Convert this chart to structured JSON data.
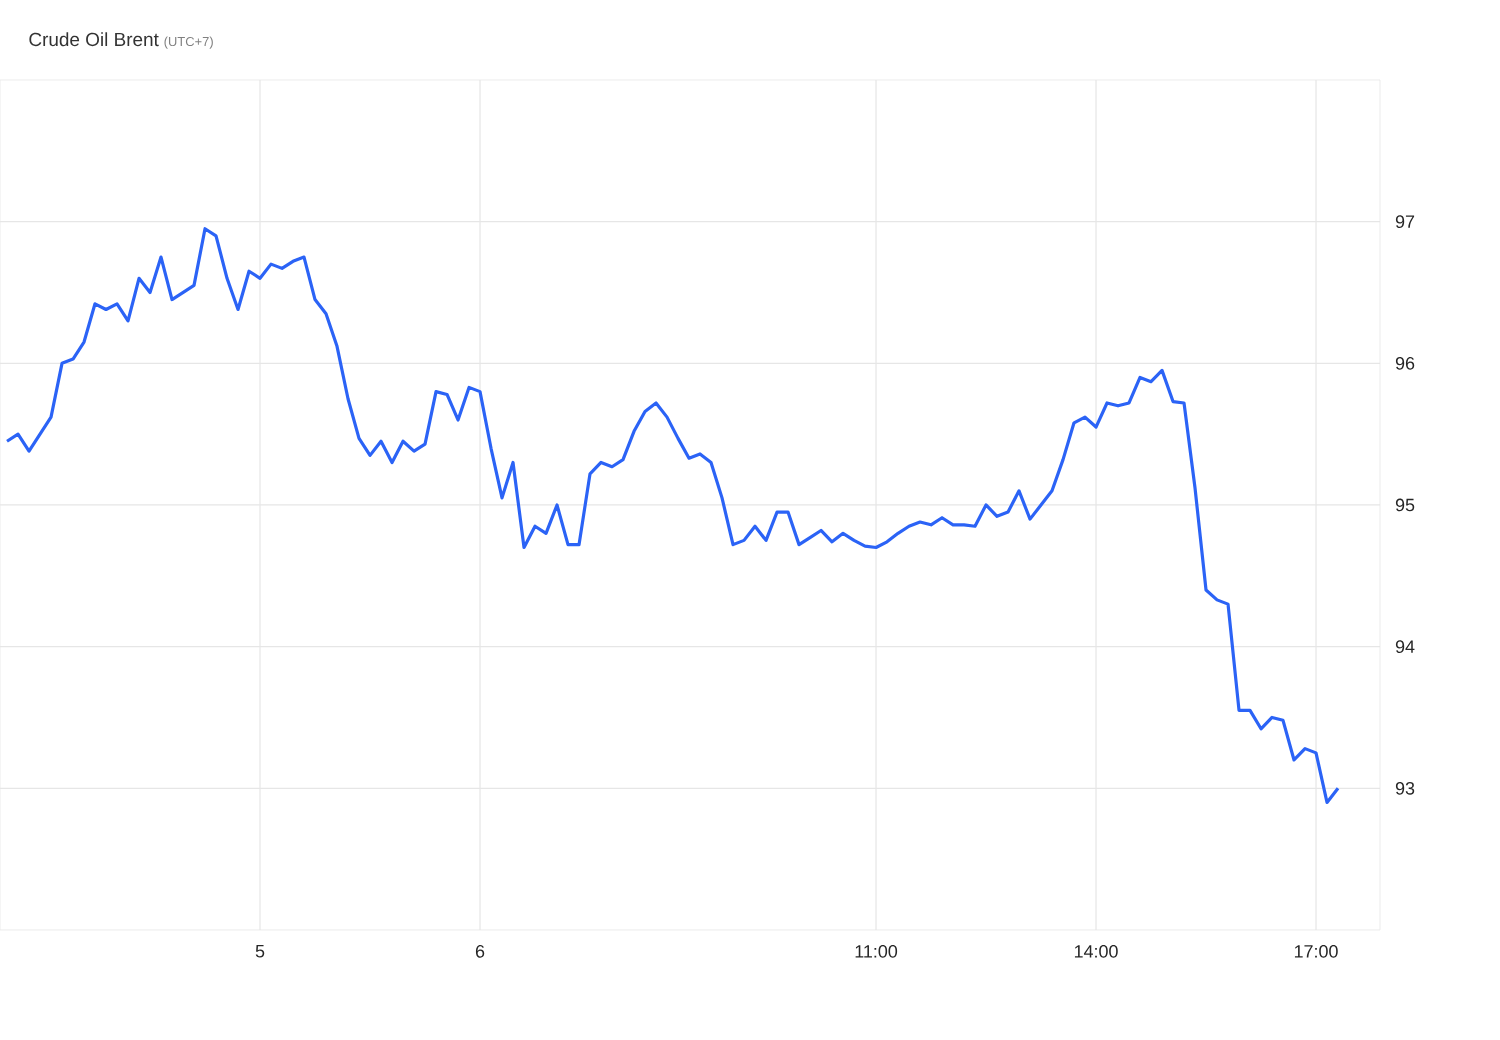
{
  "chart_data": {
    "type": "line",
    "title": "Crude Oil Brent",
    "subtitle": "(UTC+7)",
    "categories": [
      null,
      null,
      null,
      null,
      null,
      null,
      null,
      null,
      null,
      null,
      null,
      null,
      null,
      null,
      null,
      null,
      null,
      null,
      null,
      null,
      null,
      null,
      null,
      "5",
      null,
      null,
      null,
      null,
      null,
      null,
      null,
      null,
      null,
      null,
      null,
      null,
      null,
      null,
      null,
      null,
      null,
      null,
      null,
      "6",
      null,
      null,
      null,
      null,
      null,
      null,
      null,
      null,
      null,
      null,
      null,
      null,
      null,
      null,
      null,
      null,
      null,
      null,
      null,
      null,
      null,
      null,
      null,
      null,
      null,
      null,
      null,
      null,
      null,
      null,
      null,
      null,
      null,
      null,
      null,
      "11:00",
      null,
      null,
      null,
      null,
      null,
      null,
      null,
      null,
      null,
      null,
      null,
      null,
      null,
      null,
      null,
      null,
      null,
      null,
      null,
      "14:00",
      null,
      null,
      null,
      null,
      null,
      null,
      null,
      null,
      null,
      null,
      null,
      null,
      null,
      null,
      null,
      null,
      null,
      null,
      null,
      "17:00",
      null,
      null
    ],
    "series": [
      {
        "color": "#2b63f6",
        "values": [
          95.45,
          95.5,
          95.38,
          95.5,
          95.62,
          96.0,
          96.03,
          96.15,
          96.42,
          96.38,
          96.42,
          96.3,
          96.6,
          96.5,
          96.75,
          96.45,
          96.5,
          96.55,
          96.95,
          96.9,
          96.6,
          96.38,
          96.65,
          96.6,
          96.7,
          96.67,
          96.72,
          96.75,
          96.45,
          96.35,
          96.12,
          95.75,
          95.47,
          95.35,
          95.45,
          95.3,
          95.45,
          95.38,
          95.43,
          95.8,
          95.78,
          95.6,
          95.83,
          95.8,
          95.4,
          95.05,
          95.3,
          94.7,
          94.85,
          94.8,
          95.0,
          94.72,
          94.72,
          95.22,
          95.3,
          95.27,
          95.32,
          95.52,
          95.66,
          95.72,
          95.62,
          95.47,
          95.33,
          95.36,
          95.3,
          95.05,
          94.72,
          94.75,
          94.85,
          94.75,
          94.95,
          94.95,
          94.72,
          94.77,
          94.82,
          94.74,
          94.8,
          94.75,
          94.71,
          94.7,
          94.74,
          94.8,
          94.85,
          94.88,
          94.86,
          94.91,
          94.86,
          94.86,
          94.85,
          95.0,
          94.92,
          94.95,
          95.1,
          94.9,
          95.0,
          95.1,
          95.32,
          95.58,
          95.62,
          95.55,
          95.72,
          95.7,
          95.72,
          95.9,
          95.87,
          95.95,
          95.73,
          95.72,
          95.12,
          94.4,
          94.33,
          94.3,
          93.55,
          93.55,
          93.42,
          93.5,
          93.48,
          93.2,
          93.28,
          93.25,
          92.9,
          93.0
        ]
      }
    ],
    "ylim": [
      92,
      98
    ],
    "yticks": [
      93,
      94,
      95,
      96,
      97
    ],
    "grid": true,
    "marker": "none",
    "line_style": "solid"
  }
}
